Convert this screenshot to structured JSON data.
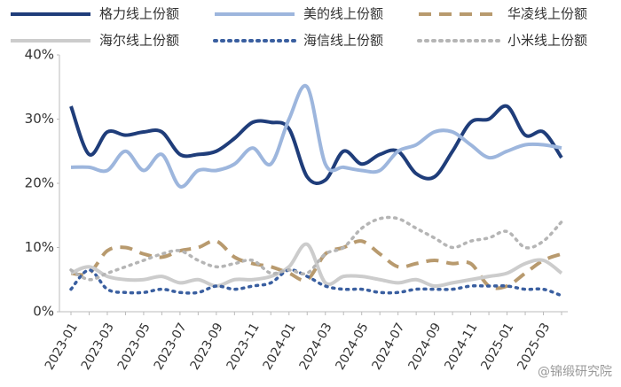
{
  "chart_data": {
    "type": "line",
    "categories": [
      "2023-01",
      null,
      "2023-03",
      null,
      "2023-05",
      null,
      "2023-07",
      null,
      "2023-09",
      null,
      "2023-11",
      null,
      "2024-01",
      null,
      "2024-03",
      null,
      "2024-05",
      null,
      "2024-07",
      null,
      "2024-09",
      null,
      "2024-11",
      null,
      "2025-01",
      null,
      "2025-03",
      null
    ],
    "series": [
      {
        "name": "格力线上份额",
        "color": "#1f3d7a",
        "style": "solid",
        "values": [
          32,
          24.5,
          28,
          27.5,
          28,
          28,
          24.5,
          24.5,
          25,
          27,
          29.5,
          29.5,
          28.5,
          21,
          20.5,
          25,
          23,
          24.5,
          25,
          21.5,
          21,
          25,
          29.5,
          30,
          32,
          27.5,
          28,
          24
        ]
      },
      {
        "name": "美的线上份额",
        "color": "#9db6dd",
        "style": "solid",
        "values": [
          22.5,
          22.5,
          22,
          25,
          22,
          24.5,
          19.5,
          22,
          22,
          23,
          25.5,
          23,
          30,
          35,
          23,
          22.5,
          22,
          22,
          25,
          26,
          28,
          28,
          26,
          24,
          25,
          26,
          26,
          25.5
        ]
      },
      {
        "name": "华凌线上份额",
        "color": "#b89a6e",
        "style": "dashed",
        "values": [
          6,
          6,
          9.5,
          10,
          9,
          8.5,
          9.5,
          10,
          11,
          8.5,
          7.5,
          7,
          6,
          5,
          9,
          10,
          11,
          9,
          7,
          7.5,
          8,
          7.5,
          7.5,
          4,
          4,
          6,
          8,
          9
        ]
      },
      {
        "name": "海尔线上份额",
        "color": "#cccccc",
        "style": "solid",
        "values": [
          6,
          7,
          5.5,
          5,
          5,
          5.5,
          4.5,
          5,
          4,
          5,
          5,
          5.5,
          7,
          10.5,
          4.5,
          5.5,
          5.5,
          5,
          4.5,
          5,
          4,
          4.5,
          5,
          5.5,
          6,
          7.5,
          8,
          6
        ]
      },
      {
        "name": "海信线上份额",
        "color": "#3a5fa0",
        "style": "dotted",
        "values": [
          3.5,
          6.5,
          3.5,
          3,
          3,
          3.5,
          3,
          3,
          4,
          3.5,
          4,
          4.5,
          6.5,
          5.5,
          4,
          3.5,
          3.5,
          3,
          3,
          3.5,
          3.5,
          3.5,
          4,
          4,
          4,
          3.5,
          3.5,
          2.5
        ]
      },
      {
        "name": "小米线上份额",
        "color": "#b5b5b5",
        "style": "dotted",
        "values": [
          6.5,
          5,
          6,
          7,
          8,
          9,
          9.5,
          8,
          7,
          7.5,
          8,
          6,
          6.5,
          6,
          9,
          10,
          13,
          14.5,
          14.5,
          13,
          11.5,
          10,
          11,
          11.5,
          12.5,
          10,
          11,
          14
        ]
      }
    ],
    "ylim": [
      0,
      40
    ],
    "yticks": [
      {
        "value": 0,
        "label": "0%"
      },
      {
        "value": 10,
        "label": "10%"
      },
      {
        "value": 20,
        "label": "20%"
      },
      {
        "value": 30,
        "label": "30%"
      },
      {
        "value": 40,
        "label": "40%"
      }
    ],
    "watermark": "@锦缎研究院"
  }
}
